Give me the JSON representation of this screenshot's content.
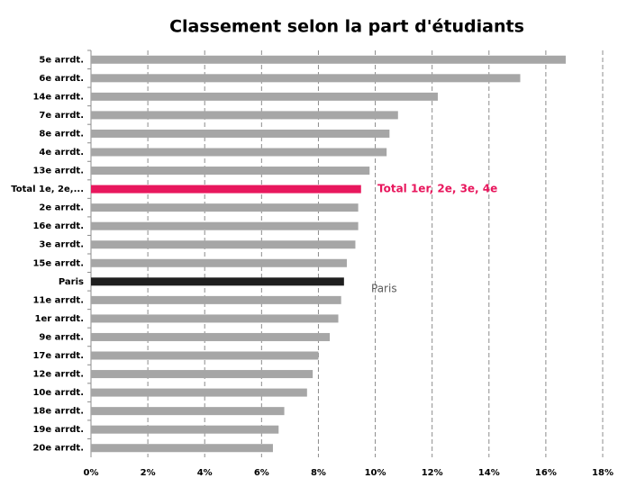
{
  "chart_data": {
    "type": "barh",
    "title": "Classement selon la part d'étudiants",
    "categories": [
      "5e arrdt.",
      "6e arrdt.",
      "14e arrdt.",
      "7e arrdt.",
      "8e arrdt.",
      "4e arrdt.",
      "13e arrdt.",
      "Total 1e, 2e,...",
      "2e arrdt.",
      "16e arrdt.",
      "3e arrdt.",
      "15e arrdt.",
      "Paris",
      "11e arrdt.",
      "1er arrdt.",
      "9e arrdt.",
      "17e arrdt.",
      "12e arrdt.",
      "10e arrdt.",
      "18e arrdt.",
      "19e arrdt.",
      "20e arrdt."
    ],
    "values": [
      16.7,
      15.1,
      12.2,
      10.8,
      10.5,
      10.4,
      9.8,
      9.5,
      9.4,
      9.4,
      9.3,
      9.0,
      8.9,
      8.8,
      8.7,
      8.4,
      8.0,
      7.8,
      7.6,
      6.8,
      6.6,
      6.4
    ],
    "colors": [
      "#a6a6a6",
      "#a6a6a6",
      "#a6a6a6",
      "#a6a6a6",
      "#a6a6a6",
      "#a6a6a6",
      "#a6a6a6",
      "#e8175d",
      "#a6a6a6",
      "#a6a6a6",
      "#a6a6a6",
      "#a6a6a6",
      "#1f1f1f",
      "#a6a6a6",
      "#a6a6a6",
      "#a6a6a6",
      "#a6a6a6",
      "#a6a6a6",
      "#a6a6a6",
      "#a6a6a6",
      "#a6a6a6",
      "#a6a6a6"
    ],
    "xlim": [
      0,
      18
    ],
    "xticks": [
      {
        "value": 0,
        "label": "0%"
      },
      {
        "value": 2,
        "label": "2%"
      },
      {
        "value": 4,
        "label": "4%"
      },
      {
        "value": 6,
        "label": "6%"
      },
      {
        "value": 8,
        "label": "8%"
      },
      {
        "value": 10,
        "label": "10%"
      },
      {
        "value": 12,
        "label": "12%"
      },
      {
        "value": 14,
        "label": "14%"
      },
      {
        "value": 16,
        "label": "16%"
      },
      {
        "value": 18,
        "label": "18%"
      }
    ],
    "grid": true,
    "annotations": [
      {
        "text": "Total 1er, 2e, 3e, 4e",
        "color": "#e8175d"
      },
      {
        "text": "Paris",
        "color": "#595959"
      }
    ]
  }
}
